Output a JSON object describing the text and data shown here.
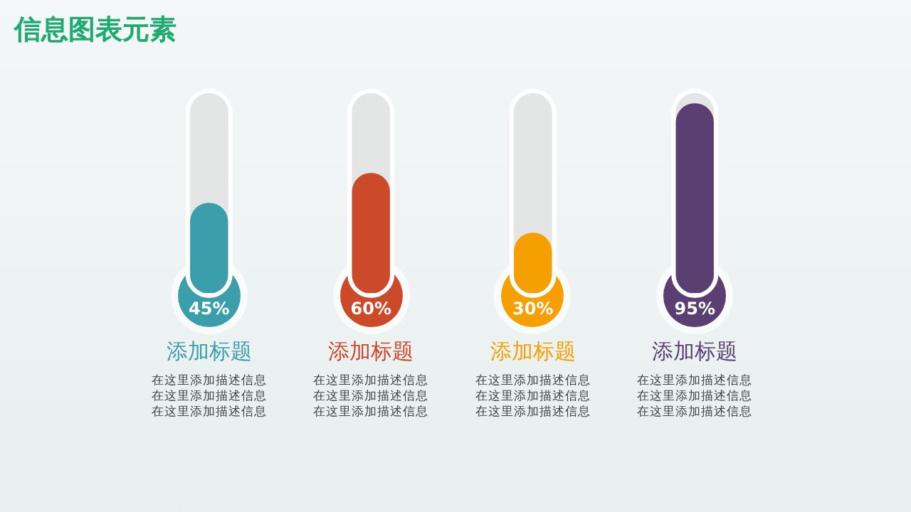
{
  "chart_data": {
    "type": "bar",
    "title": "信息图表元素",
    "categories": [
      "添加标题",
      "添加标题",
      "添加标题",
      "添加标题"
    ],
    "values": [
      45,
      60,
      30,
      95
    ],
    "colors": [
      "#3a9fab",
      "#cc4a2a",
      "#f5a000",
      "#5a3f72"
    ],
    "ylim": [
      0,
      100
    ],
    "value_labels": [
      "45%",
      "60%",
      "30%",
      "95%"
    ],
    "tick_labels": "x",
    "grid": false,
    "legend": false,
    "annotations": [
      "在这里添加描述信息",
      "在这里添加描述信息",
      "在这里添加描述信息",
      "在这里添加描述信息",
      "在这里添加描述信息",
      "在这里添加描述信息",
      "在这里添加描述信息",
      "在这里添加描述信息",
      "在这里添加描述信息",
      "在这里添加描述信息",
      "在这里添加描述信息",
      "在这里添加描述信息"
    ]
  }
}
